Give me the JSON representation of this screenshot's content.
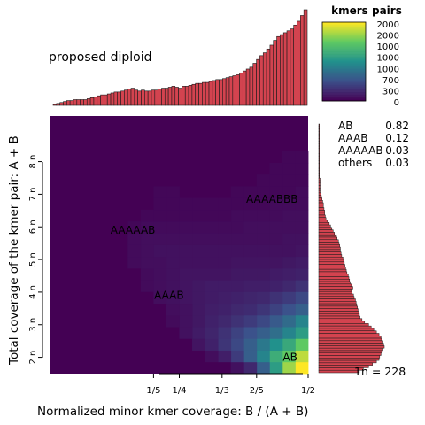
{
  "chart_data": {
    "type": "heatmap",
    "title": "proposed diploid",
    "xlabel": "Normalized minor kmer coverage: B / (A + B)",
    "ylabel": "Total coverage of the kmer pair: A + B",
    "x_ticks": [
      "1/5",
      "1/4",
      "1/3",
      "2/5",
      "1/2"
    ],
    "x_tick_values": [
      0.2,
      0.25,
      0.333,
      0.4,
      0.5
    ],
    "y_ticks": [
      "2 n",
      "3 n",
      "4 n",
      "5 n",
      "6 n",
      "7 n",
      "8 n"
    ],
    "y_tick_values": [
      2,
      3,
      4,
      5,
      6,
      7,
      8
    ],
    "xlim": [
      0,
      0.5
    ],
    "ylim": [
      1.5,
      9.4
    ],
    "legend": {
      "title": "kmers pairs",
      "tick_labels": [
        "2000",
        "2000",
        "1000",
        "1000",
        "1000",
        "700",
        "300",
        "0"
      ],
      "max_value": 2000
    },
    "annotations": [
      {
        "label": "AB",
        "x": 0.465,
        "y": 2.0
      },
      {
        "label": "AAAB",
        "x": 0.23,
        "y": 3.9
      },
      {
        "label": "AAAAAB",
        "x": 0.16,
        "y": 5.9
      },
      {
        "label": "AAAABBB",
        "x": 0.43,
        "y": 6.85
      }
    ],
    "fractions": [
      {
        "label": "AB",
        "value": "0.82"
      },
      {
        "label": "AAAB",
        "value": "0.12"
      },
      {
        "label": "AAAAAB",
        "value": "0.03"
      },
      {
        "label": "others",
        "value": "0.03"
      }
    ],
    "one_n_label": "1n =  228",
    "top_histogram": {
      "description": "marginal counts along minor coverage (relative heights, 0-1)",
      "values": [
        0.01,
        0.02,
        0.03,
        0.04,
        0.05,
        0.05,
        0.06,
        0.06,
        0.06,
        0.06,
        0.07,
        0.08,
        0.09,
        0.1,
        0.11,
        0.11,
        0.12,
        0.13,
        0.14,
        0.14,
        0.15,
        0.16,
        0.17,
        0.18,
        0.16,
        0.15,
        0.16,
        0.15,
        0.15,
        0.16,
        0.16,
        0.17,
        0.18,
        0.18,
        0.19,
        0.2,
        0.19,
        0.18,
        0.2,
        0.2,
        0.21,
        0.22,
        0.23,
        0.23,
        0.24,
        0.24,
        0.25,
        0.26,
        0.27,
        0.27,
        0.28,
        0.29,
        0.3,
        0.31,
        0.32,
        0.34,
        0.36,
        0.38,
        0.4,
        0.44,
        0.48,
        0.52,
        0.55,
        0.59,
        0.63,
        0.68,
        0.72,
        0.74,
        0.76,
        0.78,
        0.8,
        0.84,
        0.88,
        0.94,
        1.0
      ]
    },
    "right_histogram": {
      "description": "marginal counts along total coverage, top to bottom (relative widths, 0-1)",
      "values": [
        0.01,
        0.01,
        0.01,
        0.01,
        0.01,
        0.01,
        0.01,
        0.01,
        0.01,
        0.01,
        0.01,
        0.01,
        0.01,
        0.01,
        0.01,
        0.01,
        0.01,
        0.01,
        0.01,
        0.01,
        0.01,
        0.01,
        0.02,
        0.02,
        0.02,
        0.02,
        0.02,
        0.02,
        0.03,
        0.04,
        0.05,
        0.06,
        0.07,
        0.07,
        0.08,
        0.09,
        0.09,
        0.1,
        0.11,
        0.13,
        0.16,
        0.18,
        0.2,
        0.22,
        0.24,
        0.27,
        0.28,
        0.3,
        0.31,
        0.32,
        0.33,
        0.33,
        0.34,
        0.35,
        0.37,
        0.38,
        0.39,
        0.4,
        0.41,
        0.42,
        0.43,
        0.45,
        0.46,
        0.47,
        0.48,
        0.5,
        0.52,
        0.5,
        0.51,
        0.53,
        0.54,
        0.56,
        0.57,
        0.58,
        0.59,
        0.6,
        0.61,
        0.62,
        0.63,
        0.66,
        0.7,
        0.76,
        0.8,
        0.84,
        0.88,
        0.92,
        0.95,
        0.96,
        0.98,
        0.99,
        1.0,
        0.98,
        0.97,
        0.95,
        0.93,
        0.92,
        0.88,
        0.82,
        0.76,
        0.68,
        0.62
      ]
    },
    "heatmap": {
      "description": "grid of 20 x bins (0 to 0.5) by 22 y bins (bottom to top), intensity 0-1",
      "cols": 20,
      "rows": 22,
      "background": 0.0,
      "cells": [
        {
          "c": 19,
          "r": 0,
          "v": 1.0
        },
        {
          "c": 18,
          "r": 0,
          "v": 0.85
        },
        {
          "c": 17,
          "r": 0,
          "v": 0.55
        },
        {
          "c": 16,
          "r": 0,
          "v": 0.3
        },
        {
          "c": 15,
          "r": 0,
          "v": 0.12
        },
        {
          "c": 14,
          "r": 0,
          "v": 0.05
        },
        {
          "c": 19,
          "r": 1,
          "v": 0.9
        },
        {
          "c": 18,
          "r": 1,
          "v": 0.75
        },
        {
          "c": 17,
          "r": 1,
          "v": 0.62
        },
        {
          "c": 16,
          "r": 1,
          "v": 0.45
        },
        {
          "c": 15,
          "r": 1,
          "v": 0.3
        },
        {
          "c": 14,
          "r": 1,
          "v": 0.18
        },
        {
          "c": 13,
          "r": 1,
          "v": 0.09
        },
        {
          "c": 12,
          "r": 1,
          "v": 0.04
        },
        {
          "c": 19,
          "r": 2,
          "v": 0.75
        },
        {
          "c": 18,
          "r": 2,
          "v": 0.6
        },
        {
          "c": 17,
          "r": 2,
          "v": 0.5
        },
        {
          "c": 16,
          "r": 2,
          "v": 0.4
        },
        {
          "c": 15,
          "r": 2,
          "v": 0.3
        },
        {
          "c": 14,
          "r": 2,
          "v": 0.22
        },
        {
          "c": 13,
          "r": 2,
          "v": 0.16
        },
        {
          "c": 12,
          "r": 2,
          "v": 0.1
        },
        {
          "c": 11,
          "r": 2,
          "v": 0.06
        },
        {
          "c": 19,
          "r": 3,
          "v": 0.55
        },
        {
          "c": 18,
          "r": 3,
          "v": 0.45
        },
        {
          "c": 17,
          "r": 3,
          "v": 0.36
        },
        {
          "c": 16,
          "r": 3,
          "v": 0.3
        },
        {
          "c": 15,
          "r": 3,
          "v": 0.25
        },
        {
          "c": 14,
          "r": 3,
          "v": 0.2
        },
        {
          "c": 13,
          "r": 3,
          "v": 0.15
        },
        {
          "c": 12,
          "r": 3,
          "v": 0.11
        },
        {
          "c": 11,
          "r": 3,
          "v": 0.08
        },
        {
          "c": 10,
          "r": 3,
          "v": 0.05
        },
        {
          "c": 19,
          "r": 4,
          "v": 0.45
        },
        {
          "c": 18,
          "r": 4,
          "v": 0.35
        },
        {
          "c": 17,
          "r": 4,
          "v": 0.28
        },
        {
          "c": 16,
          "r": 4,
          "v": 0.22
        },
        {
          "c": 15,
          "r": 4,
          "v": 0.18
        },
        {
          "c": 14,
          "r": 4,
          "v": 0.15
        },
        {
          "c": 13,
          "r": 4,
          "v": 0.12
        },
        {
          "c": 12,
          "r": 4,
          "v": 0.1
        },
        {
          "c": 11,
          "r": 4,
          "v": 0.07
        },
        {
          "c": 10,
          "r": 4,
          "v": 0.05
        },
        {
          "c": 9,
          "r": 4,
          "v": 0.03
        },
        {
          "c": 19,
          "r": 5,
          "v": 0.3
        },
        {
          "c": 18,
          "r": 5,
          "v": 0.25
        },
        {
          "c": 17,
          "r": 5,
          "v": 0.2
        },
        {
          "c": 16,
          "r": 5,
          "v": 0.16
        },
        {
          "c": 15,
          "r": 5,
          "v": 0.13
        },
        {
          "c": 14,
          "r": 5,
          "v": 0.12
        },
        {
          "c": 13,
          "r": 5,
          "v": 0.1
        },
        {
          "c": 12,
          "r": 5,
          "v": 0.09
        },
        {
          "c": 11,
          "r": 5,
          "v": 0.07
        },
        {
          "c": 10,
          "r": 5,
          "v": 0.05
        },
        {
          "c": 9,
          "r": 5,
          "v": 0.04
        },
        {
          "c": 19,
          "r": 6,
          "v": 0.22
        },
        {
          "c": 18,
          "r": 6,
          "v": 0.18
        },
        {
          "c": 17,
          "r": 6,
          "v": 0.15
        },
        {
          "c": 16,
          "r": 6,
          "v": 0.12
        },
        {
          "c": 15,
          "r": 6,
          "v": 0.11
        },
        {
          "c": 14,
          "r": 6,
          "v": 0.1
        },
        {
          "c": 13,
          "r": 6,
          "v": 0.09
        },
        {
          "c": 12,
          "r": 6,
          "v": 0.08
        },
        {
          "c": 11,
          "r": 6,
          "v": 0.07
        },
        {
          "c": 10,
          "r": 6,
          "v": 0.06
        },
        {
          "c": 9,
          "r": 6,
          "v": 0.05
        },
        {
          "c": 8,
          "r": 6,
          "v": 0.04
        },
        {
          "c": 19,
          "r": 7,
          "v": 0.15
        },
        {
          "c": 18,
          "r": 7,
          "v": 0.12
        },
        {
          "c": 17,
          "r": 7,
          "v": 0.1
        },
        {
          "c": 16,
          "r": 7,
          "v": 0.09
        },
        {
          "c": 15,
          "r": 7,
          "v": 0.09
        },
        {
          "c": 14,
          "r": 7,
          "v": 0.08
        },
        {
          "c": 13,
          "r": 7,
          "v": 0.08
        },
        {
          "c": 12,
          "r": 7,
          "v": 0.08
        },
        {
          "c": 11,
          "r": 7,
          "v": 0.07
        },
        {
          "c": 10,
          "r": 7,
          "v": 0.06
        },
        {
          "c": 9,
          "r": 7,
          "v": 0.05
        },
        {
          "c": 8,
          "r": 7,
          "v": 0.04
        },
        {
          "c": 7,
          "r": 7,
          "v": 0.03
        },
        {
          "c": 19,
          "r": 8,
          "v": 0.1
        },
        {
          "c": 18,
          "r": 8,
          "v": 0.09
        },
        {
          "c": 17,
          "r": 8,
          "v": 0.08
        },
        {
          "c": 16,
          "r": 8,
          "v": 0.07
        },
        {
          "c": 15,
          "r": 8,
          "v": 0.07
        },
        {
          "c": 14,
          "r": 8,
          "v": 0.07
        },
        {
          "c": 13,
          "r": 8,
          "v": 0.06
        },
        {
          "c": 12,
          "r": 8,
          "v": 0.06
        },
        {
          "c": 11,
          "r": 8,
          "v": 0.06
        },
        {
          "c": 10,
          "r": 8,
          "v": 0.06
        },
        {
          "c": 9,
          "r": 8,
          "v": 0.05
        },
        {
          "c": 8,
          "r": 8,
          "v": 0.04
        },
        {
          "c": 7,
          "r": 8,
          "v": 0.03
        },
        {
          "c": 19,
          "r": 9,
          "v": 0.08
        },
        {
          "c": 18,
          "r": 9,
          "v": 0.07
        },
        {
          "c": 17,
          "r": 9,
          "v": 0.06
        },
        {
          "c": 16,
          "r": 9,
          "v": 0.06
        },
        {
          "c": 15,
          "r": 9,
          "v": 0.06
        },
        {
          "c": 14,
          "r": 9,
          "v": 0.06
        },
        {
          "c": 13,
          "r": 9,
          "v": 0.05
        },
        {
          "c": 12,
          "r": 9,
          "v": 0.05
        },
        {
          "c": 11,
          "r": 9,
          "v": 0.05
        },
        {
          "c": 10,
          "r": 9,
          "v": 0.05
        },
        {
          "c": 9,
          "r": 9,
          "v": 0.05
        },
        {
          "c": 8,
          "r": 9,
          "v": 0.04
        },
        {
          "c": 7,
          "r": 9,
          "v": 0.04
        },
        {
          "c": 6,
          "r": 9,
          "v": 0.03
        },
        {
          "c": 19,
          "r": 10,
          "v": 0.06
        },
        {
          "c": 18,
          "r": 10,
          "v": 0.05
        },
        {
          "c": 17,
          "r": 10,
          "v": 0.05
        },
        {
          "c": 16,
          "r": 10,
          "v": 0.05
        },
        {
          "c": 15,
          "r": 10,
          "v": 0.05
        },
        {
          "c": 14,
          "r": 10,
          "v": 0.05
        },
        {
          "c": 13,
          "r": 10,
          "v": 0.05
        },
        {
          "c": 12,
          "r": 10,
          "v": 0.05
        },
        {
          "c": 11,
          "r": 10,
          "v": 0.05
        },
        {
          "c": 10,
          "r": 10,
          "v": 0.05
        },
        {
          "c": 9,
          "r": 10,
          "v": 0.05
        },
        {
          "c": 8,
          "r": 10,
          "v": 0.05
        },
        {
          "c": 7,
          "r": 10,
          "v": 0.04
        },
        {
          "c": 6,
          "r": 10,
          "v": 0.03
        },
        {
          "c": 19,
          "r": 11,
          "v": 0.05
        },
        {
          "c": 18,
          "r": 11,
          "v": 0.05
        },
        {
          "c": 17,
          "r": 11,
          "v": 0.04
        },
        {
          "c": 16,
          "r": 11,
          "v": 0.04
        },
        {
          "c": 15,
          "r": 11,
          "v": 0.04
        },
        {
          "c": 14,
          "r": 11,
          "v": 0.04
        },
        {
          "c": 13,
          "r": 11,
          "v": 0.04
        },
        {
          "c": 12,
          "r": 11,
          "v": 0.04
        },
        {
          "c": 11,
          "r": 11,
          "v": 0.04
        },
        {
          "c": 10,
          "r": 11,
          "v": 0.04
        },
        {
          "c": 9,
          "r": 11,
          "v": 0.04
        },
        {
          "c": 8,
          "r": 11,
          "v": 0.04
        },
        {
          "c": 7,
          "r": 11,
          "v": 0.04
        },
        {
          "c": 6,
          "r": 11,
          "v": 0.03
        },
        {
          "c": 19,
          "r": 12,
          "v": 0.04
        },
        {
          "c": 18,
          "r": 12,
          "v": 0.04
        },
        {
          "c": 17,
          "r": 12,
          "v": 0.04
        },
        {
          "c": 16,
          "r": 12,
          "v": 0.04
        },
        {
          "c": 15,
          "r": 12,
          "v": 0.04
        },
        {
          "c": 14,
          "r": 12,
          "v": 0.03
        },
        {
          "c": 13,
          "r": 12,
          "v": 0.03
        },
        {
          "c": 12,
          "r": 12,
          "v": 0.03
        },
        {
          "c": 11,
          "r": 12,
          "v": 0.03
        },
        {
          "c": 10,
          "r": 12,
          "v": 0.03
        },
        {
          "c": 9,
          "r": 12,
          "v": 0.03
        },
        {
          "c": 8,
          "r": 12,
          "v": 0.03
        },
        {
          "c": 7,
          "r": 12,
          "v": 0.03
        },
        {
          "c": 6,
          "r": 12,
          "v": 0.02
        },
        {
          "c": 19,
          "r": 13,
          "v": 0.04
        },
        {
          "c": 18,
          "r": 13,
          "v": 0.04
        },
        {
          "c": 17,
          "r": 13,
          "v": 0.03
        },
        {
          "c": 16,
          "r": 13,
          "v": 0.03
        },
        {
          "c": 15,
          "r": 13,
          "v": 0.03
        },
        {
          "c": 14,
          "r": 13,
          "v": 0.03
        },
        {
          "c": 13,
          "r": 13,
          "v": 0.02
        },
        {
          "c": 12,
          "r": 13,
          "v": 0.02
        },
        {
          "c": 11,
          "r": 13,
          "v": 0.02
        },
        {
          "c": 10,
          "r": 13,
          "v": 0.02
        },
        {
          "c": 9,
          "r": 13,
          "v": 0.02
        },
        {
          "c": 8,
          "r": 13,
          "v": 0.02
        },
        {
          "c": 7,
          "r": 13,
          "v": 0.02
        },
        {
          "c": 19,
          "r": 14,
          "v": 0.03
        },
        {
          "c": 18,
          "r": 14,
          "v": 0.03
        },
        {
          "c": 17,
          "r": 14,
          "v": 0.03
        },
        {
          "c": 16,
          "r": 14,
          "v": 0.02
        },
        {
          "c": 15,
          "r": 14,
          "v": 0.02
        },
        {
          "c": 14,
          "r": 14,
          "v": 0.02
        },
        {
          "c": 13,
          "r": 14,
          "v": 0.02
        },
        {
          "c": 12,
          "r": 14,
          "v": 0.02
        },
        {
          "c": 11,
          "r": 14,
          "v": 0.02
        },
        {
          "c": 10,
          "r": 14,
          "v": 0.02
        },
        {
          "c": 9,
          "r": 14,
          "v": 0.02
        },
        {
          "c": 8,
          "r": 14,
          "v": 0.02
        },
        {
          "c": 19,
          "r": 15,
          "v": 0.03
        },
        {
          "c": 18,
          "r": 15,
          "v": 0.02
        },
        {
          "c": 17,
          "r": 15,
          "v": 0.02
        },
        {
          "c": 16,
          "r": 15,
          "v": 0.02
        },
        {
          "c": 15,
          "r": 15,
          "v": 0.02
        },
        {
          "c": 14,
          "r": 15,
          "v": 0.02
        },
        {
          "c": 9,
          "r": 15,
          "v": 0.02
        },
        {
          "c": 8,
          "r": 15,
          "v": 0.02
        },
        {
          "c": 19,
          "r": 16,
          "v": 0.02
        },
        {
          "c": 18,
          "r": 16,
          "v": 0.02
        },
        {
          "c": 17,
          "r": 16,
          "v": 0.02
        },
        {
          "c": 16,
          "r": 16,
          "v": 0.02
        },
        {
          "c": 19,
          "r": 17,
          "v": 0.02
        },
        {
          "c": 18,
          "r": 17,
          "v": 0.02
        },
        {
          "c": 17,
          "r": 17,
          "v": 0.02
        },
        {
          "c": 19,
          "r": 18,
          "v": 0.02
        },
        {
          "c": 18,
          "r": 18,
          "v": 0.02
        }
      ]
    },
    "colors": {
      "bar_fill": "#d3434f",
      "bar_edge": "#1a1a1a",
      "heat_low": "#440154",
      "heat_mid": "#21918c",
      "heat_high": "#fde725"
    }
  }
}
